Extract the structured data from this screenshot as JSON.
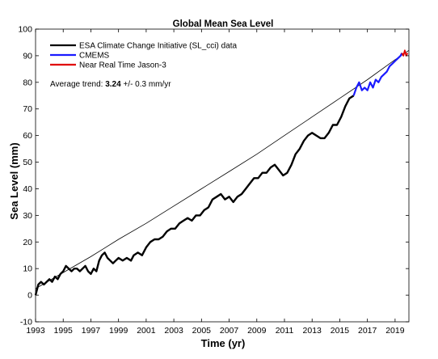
{
  "chart_data": {
    "type": "line",
    "title": "Global Mean Sea Level",
    "xlabel": "Time (yr)",
    "ylabel": "Sea Level (mm)",
    "xlim": [
      1993,
      2020
    ],
    "ylim": [
      -10,
      100
    ],
    "xticks": [
      "1993",
      "1995",
      "1997",
      "1999",
      "2001",
      "2003",
      "2005",
      "2007",
      "2009",
      "2011",
      "2013",
      "2015",
      "2017",
      "2019"
    ],
    "yticks": [
      "-10",
      "0",
      "10",
      "20",
      "30",
      "40",
      "50",
      "60",
      "70",
      "80",
      "90",
      "100"
    ],
    "grid": false,
    "legend_position": "top-left",
    "annotation": {
      "prefix": "Average trend: ",
      "value": "3.24",
      "suffix": " +/- 0.3 mm/yr"
    },
    "series": [
      {
        "name": "ESA Climate Change Initiative (SL_cci) data",
        "color": "#000000",
        "points": [
          [
            1993.0,
            0
          ],
          [
            1993.2,
            4
          ],
          [
            1993.4,
            5
          ],
          [
            1993.6,
            4
          ],
          [
            1993.8,
            5
          ],
          [
            1994.0,
            6
          ],
          [
            1994.2,
            5
          ],
          [
            1994.4,
            7
          ],
          [
            1994.6,
            6
          ],
          [
            1994.8,
            8
          ],
          [
            1995.0,
            9
          ],
          [
            1995.2,
            11
          ],
          [
            1995.4,
            10
          ],
          [
            1995.6,
            9
          ],
          [
            1995.8,
            10
          ],
          [
            1996.0,
            10
          ],
          [
            1996.2,
            9
          ],
          [
            1996.4,
            10
          ],
          [
            1996.6,
            11
          ],
          [
            1996.8,
            9
          ],
          [
            1997.0,
            8
          ],
          [
            1997.2,
            10
          ],
          [
            1997.4,
            9
          ],
          [
            1997.6,
            13
          ],
          [
            1997.8,
            15
          ],
          [
            1998.0,
            16
          ],
          [
            1998.2,
            14
          ],
          [
            1998.4,
            13
          ],
          [
            1998.6,
            12
          ],
          [
            1998.8,
            13
          ],
          [
            1999.0,
            14
          ],
          [
            1999.3,
            13
          ],
          [
            1999.6,
            14
          ],
          [
            1999.9,
            13
          ],
          [
            2000.1,
            15
          ],
          [
            2000.4,
            16
          ],
          [
            2000.7,
            15
          ],
          [
            2001.0,
            18
          ],
          [
            2001.3,
            20
          ],
          [
            2001.6,
            21
          ],
          [
            2001.9,
            21
          ],
          [
            2002.2,
            22
          ],
          [
            2002.5,
            24
          ],
          [
            2002.8,
            25
          ],
          [
            2003.1,
            25
          ],
          [
            2003.4,
            27
          ],
          [
            2003.7,
            28
          ],
          [
            2004.0,
            29
          ],
          [
            2004.3,
            28
          ],
          [
            2004.6,
            30
          ],
          [
            2004.9,
            30
          ],
          [
            2005.2,
            32
          ],
          [
            2005.5,
            33
          ],
          [
            2005.8,
            36
          ],
          [
            2006.1,
            37
          ],
          [
            2006.4,
            38
          ],
          [
            2006.7,
            36
          ],
          [
            2007.0,
            37
          ],
          [
            2007.3,
            35
          ],
          [
            2007.6,
            37
          ],
          [
            2007.9,
            38
          ],
          [
            2008.2,
            40
          ],
          [
            2008.5,
            42
          ],
          [
            2008.8,
            44
          ],
          [
            2009.1,
            44
          ],
          [
            2009.4,
            46
          ],
          [
            2009.7,
            46
          ],
          [
            2010.0,
            48
          ],
          [
            2010.3,
            49
          ],
          [
            2010.6,
            47
          ],
          [
            2010.9,
            45
          ],
          [
            2011.2,
            46
          ],
          [
            2011.5,
            49
          ],
          [
            2011.8,
            53
          ],
          [
            2012.1,
            55
          ],
          [
            2012.4,
            58
          ],
          [
            2012.7,
            60
          ],
          [
            2013.0,
            61
          ],
          [
            2013.3,
            60
          ],
          [
            2013.6,
            59
          ],
          [
            2013.9,
            59
          ],
          [
            2014.2,
            61
          ],
          [
            2014.5,
            64
          ],
          [
            2014.8,
            64
          ],
          [
            2015.1,
            67
          ],
          [
            2015.4,
            71
          ],
          [
            2015.7,
            74
          ],
          [
            2016.0,
            75
          ]
        ]
      },
      {
        "name": "CMEMS",
        "color": "#1a1aff",
        "points": [
          [
            2016.0,
            75
          ],
          [
            2016.2,
            78
          ],
          [
            2016.4,
            80
          ],
          [
            2016.6,
            77
          ],
          [
            2016.8,
            78
          ],
          [
            2017.0,
            77
          ],
          [
            2017.2,
            80
          ],
          [
            2017.4,
            78
          ],
          [
            2017.6,
            81
          ],
          [
            2017.8,
            80
          ],
          [
            2018.0,
            82
          ],
          [
            2018.2,
            83
          ],
          [
            2018.4,
            84
          ],
          [
            2018.6,
            86
          ],
          [
            2018.8,
            87
          ],
          [
            2019.0,
            88
          ],
          [
            2019.2,
            89
          ],
          [
            2019.4,
            90
          ],
          [
            2019.5,
            91
          ]
        ]
      },
      {
        "name": "Near Real Time Jason-3",
        "color": "#e00000",
        "points": [
          [
            2019.5,
            91
          ],
          [
            2019.6,
            90
          ],
          [
            2019.7,
            92
          ],
          [
            2019.8,
            90
          ],
          [
            2019.9,
            91
          ]
        ]
      }
    ],
    "trend_line": {
      "color": "#000000",
      "points": [
        [
          1993,
          2.5
        ],
        [
          1995,
          8.5
        ],
        [
          1997,
          14.5
        ],
        [
          1999,
          21
        ],
        [
          2001,
          27
        ],
        [
          2003,
          33.5
        ],
        [
          2005,
          40
        ],
        [
          2007,
          46.5
        ],
        [
          2009,
          53
        ],
        [
          2011,
          60
        ],
        [
          2013,
          67
        ],
        [
          2015,
          74
        ],
        [
          2017,
          81
        ],
        [
          2019,
          88.5
        ],
        [
          2020,
          92
        ]
      ]
    }
  }
}
